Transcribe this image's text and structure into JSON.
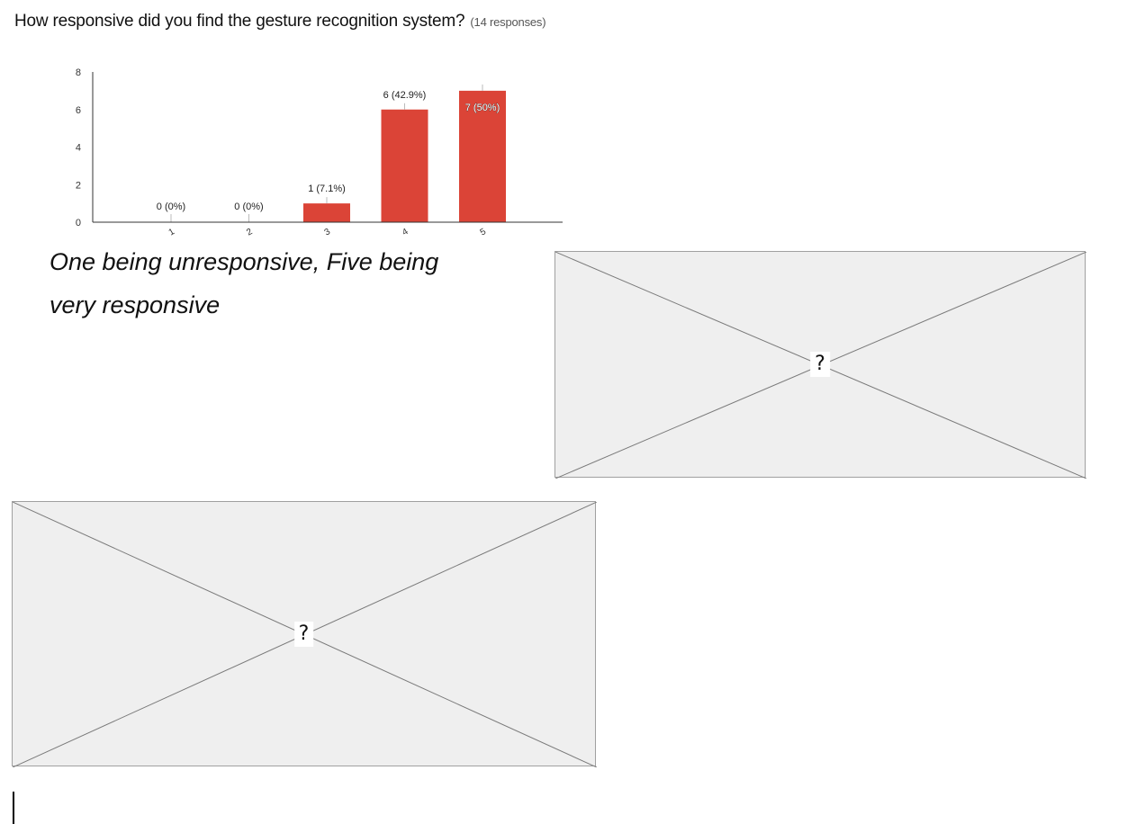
{
  "question": {
    "text": "How responsive did you find the gesture recognition system?",
    "response_count": "(14 responses)"
  },
  "chart_data": {
    "type": "bar",
    "categories": [
      "1",
      "2",
      "3",
      "4",
      "5"
    ],
    "values": [
      0,
      0,
      1,
      6,
      7
    ],
    "labels": [
      "0 (0%)",
      "0 (0%)",
      "1 (7.1%)",
      "6 (42.9%)",
      "7 (50%)"
    ],
    "y_ticks": [
      0,
      2,
      4,
      6,
      8
    ],
    "ylim": [
      0,
      8
    ],
    "bar_color": "#db4437",
    "grid": false
  },
  "caption": "One being unresponsive, Five being very responsive",
  "placeholders": [
    {
      "glyph": "?"
    },
    {
      "glyph": "?"
    }
  ]
}
